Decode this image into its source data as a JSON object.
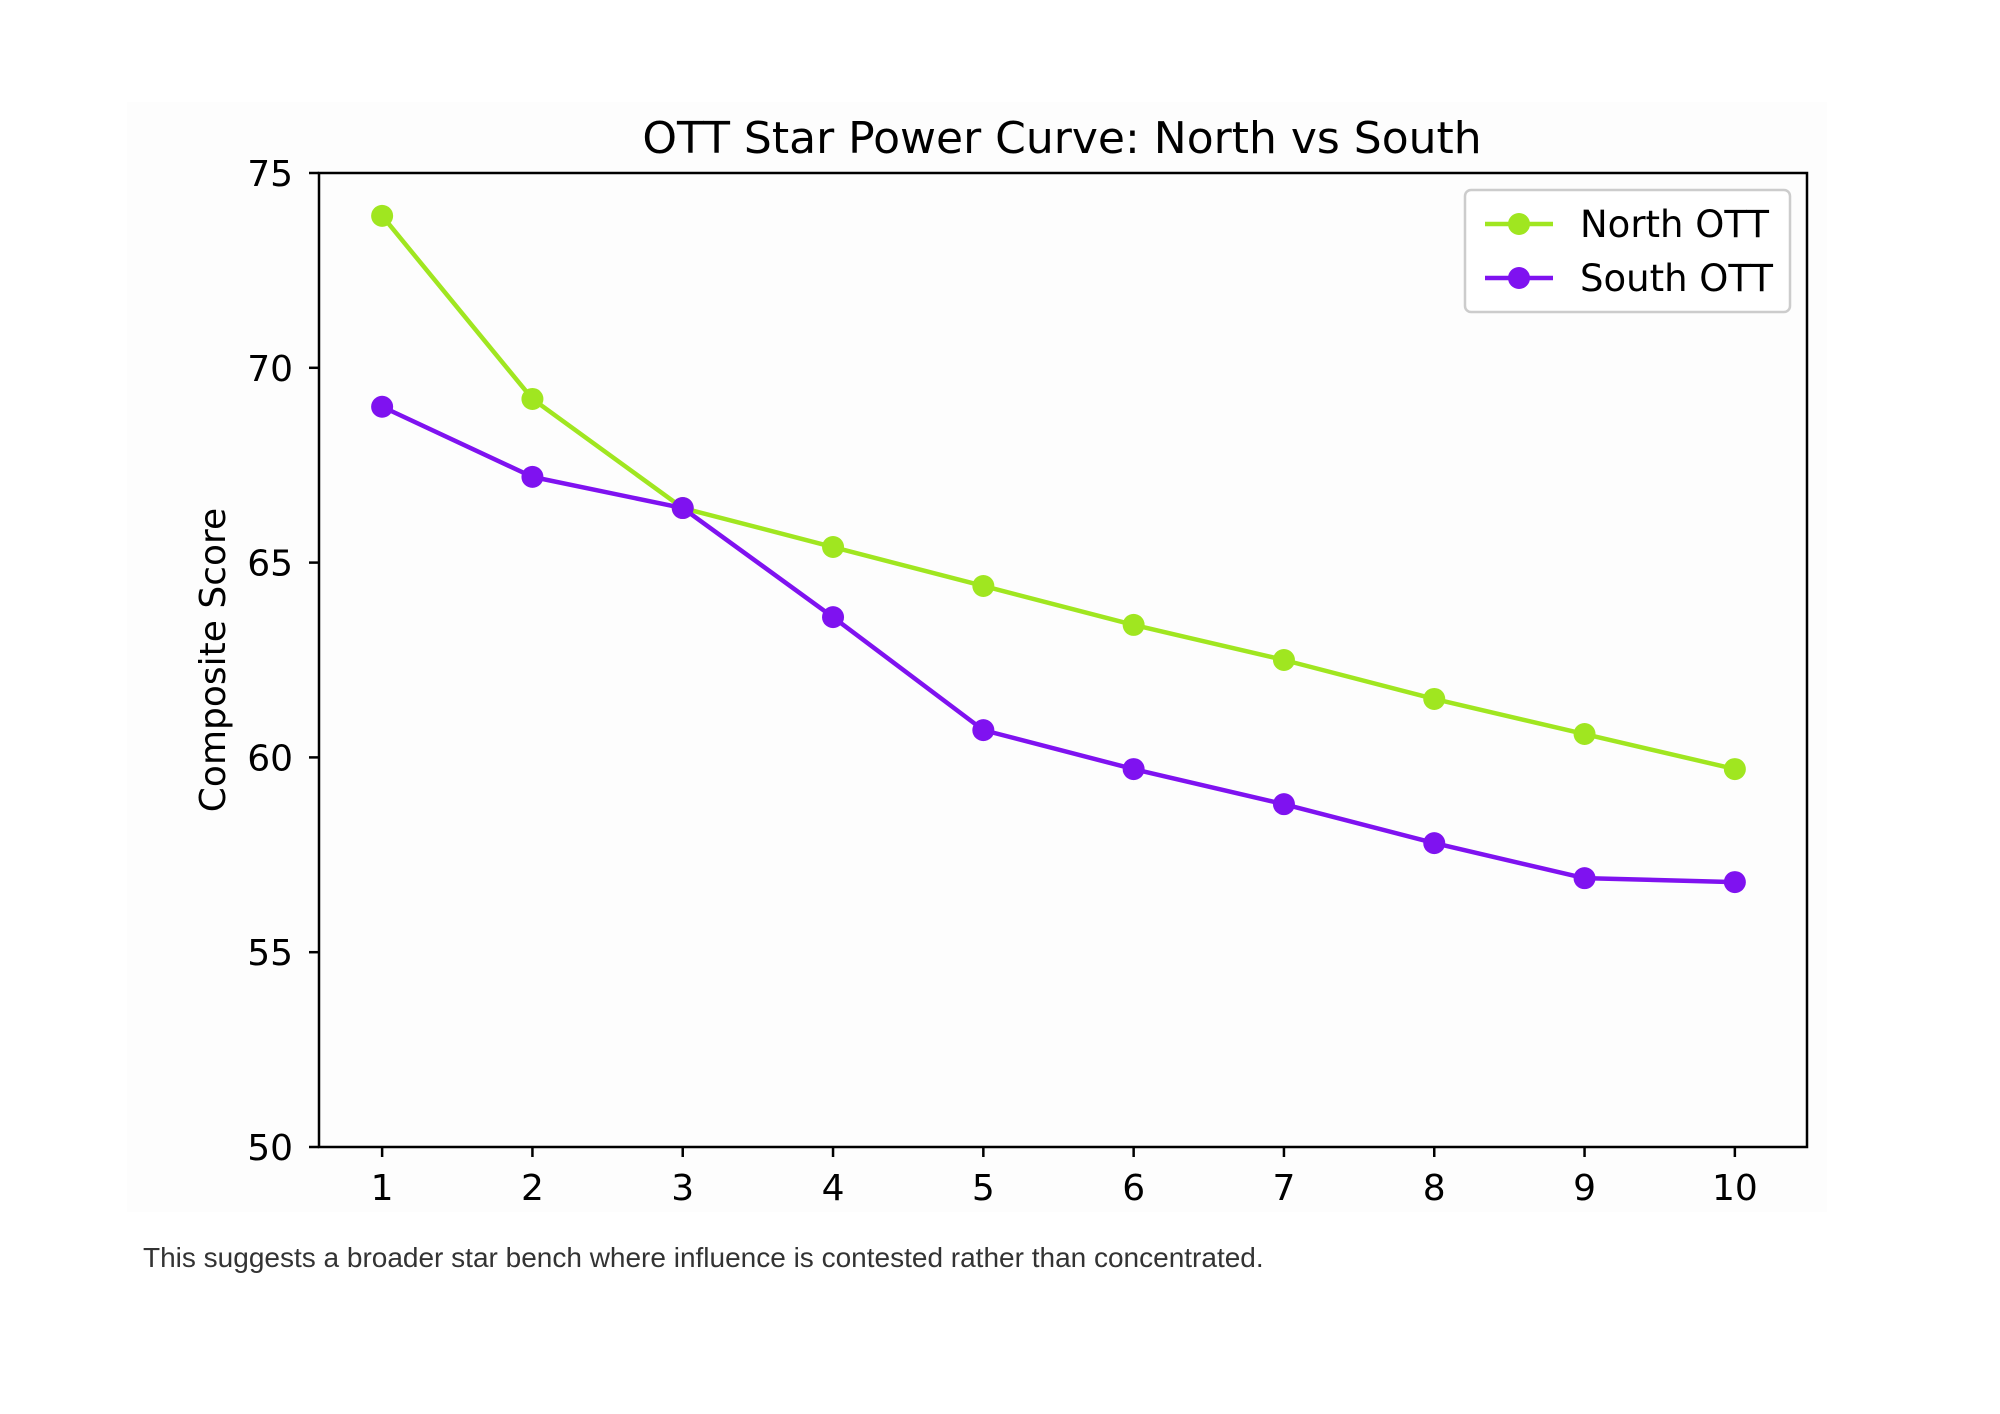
{
  "chart_data": {
    "type": "line",
    "title": "OTT Star Power Curve: North vs South",
    "xlabel": "",
    "ylabel": "Composite Score",
    "x": [
      1,
      2,
      3,
      4,
      5,
      6,
      7,
      8,
      9,
      10
    ],
    "xticks": [
      "1",
      "2",
      "3",
      "4",
      "5",
      "6",
      "7",
      "8",
      "9",
      "10"
    ],
    "yticks": [
      "50",
      "55",
      "60",
      "65",
      "70",
      "75"
    ],
    "xlim": [
      0.58,
      10.48
    ],
    "ylim": [
      50,
      75
    ],
    "grid": false,
    "legend_position": "top-right",
    "series": [
      {
        "name": "North OTT",
        "color": "#a0e620",
        "values": [
          73.9,
          69.2,
          66.4,
          65.4,
          64.4,
          63.4,
          62.5,
          61.5,
          60.6,
          59.7
        ]
      },
      {
        "name": "South OTT",
        "color": "#7f12f0",
        "values": [
          69.0,
          67.2,
          66.4,
          63.6,
          60.7,
          59.7,
          58.8,
          57.8,
          56.9,
          56.8
        ]
      }
    ]
  },
  "caption": "This suggests a broader star bench where influence is contested rather than concentrated."
}
